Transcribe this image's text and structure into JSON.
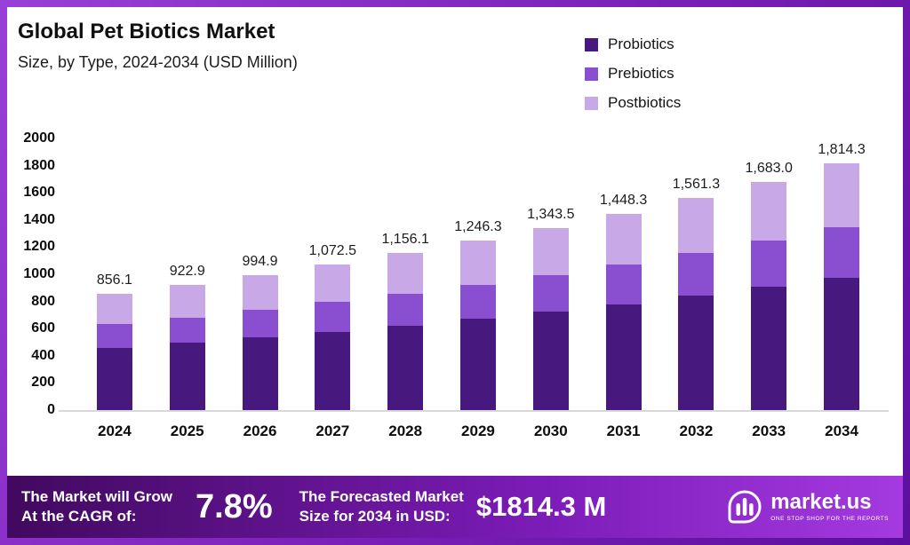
{
  "header": {
    "title": "Global Pet Biotics Market",
    "subtitle": "Size, by Type, 2024-2034 (USD Million)"
  },
  "legend": [
    {
      "label": "Probiotics",
      "color": "#47187e"
    },
    {
      "label": "Prebiotics",
      "color": "#8a4fd0"
    },
    {
      "label": "Postbiotics",
      "color": "#c9a8e8"
    }
  ],
  "chart_data": {
    "type": "bar",
    "stacked": true,
    "title": "Global Pet Biotics Market Size, by Type, 2024-2034 (USD Million)",
    "xlabel": "",
    "ylabel": "USD Million",
    "ylim": [
      0,
      2000
    ],
    "y_ticks": [
      0,
      200,
      400,
      600,
      800,
      1000,
      1200,
      1400,
      1600,
      1800,
      2000
    ],
    "grid": false,
    "legend_position": "top-right",
    "categories": [
      "2024",
      "2025",
      "2026",
      "2027",
      "2028",
      "2029",
      "2030",
      "2031",
      "2032",
      "2033",
      "2034"
    ],
    "series": [
      {
        "name": "Probiotics",
        "color": "#47187e",
        "values": [
          460.0,
          497.0,
          536.0,
          578.0,
          623.0,
          671.0,
          723.0,
          780.0,
          841.0,
          906.0,
          977.0
        ]
      },
      {
        "name": "Prebiotics",
        "color": "#8a4fd0",
        "values": [
          172.0,
          186.0,
          201.0,
          217.0,
          234.0,
          252.0,
          272.0,
          293.0,
          316.0,
          341.0,
          367.0
        ]
      },
      {
        "name": "Postbiotics",
        "color": "#c9a8e8",
        "values": [
          224.1,
          239.9,
          257.9,
          277.5,
          299.1,
          323.3,
          348.5,
          375.3,
          404.3,
          436.0,
          470.3
        ]
      }
    ],
    "totals": [
      856.1,
      922.9,
      994.9,
      1072.5,
      1156.1,
      1246.3,
      1343.5,
      1448.3,
      1561.3,
      1683.0,
      1814.3
    ],
    "total_labels": [
      "856.1",
      "922.9",
      "994.9",
      "1,072.5",
      "1,156.1",
      "1,246.3",
      "1,343.5",
      "1,448.3",
      "1,561.3",
      "1,683.0",
      "1,814.3"
    ]
  },
  "footer": {
    "cagr_label_line1": "The Market will Grow",
    "cagr_label_line2": "At the CAGR of:",
    "cagr_value": "7.8%",
    "forecast_label_line1": "The Forecasted Market",
    "forecast_label_line2": "Size for 2034 in USD:",
    "forecast_value": "$1814.3 M",
    "brand": "market.us",
    "brand_tagline": "ONE STOP SHOP FOR THE REPORTS"
  },
  "colors": {
    "probiotics": "#47187e",
    "prebiotics": "#8a4fd0",
    "postbiotics": "#c9a8e8",
    "frame_purple": "#7a1fb8",
    "banner_dark": "#41095f",
    "banner_bright": "#a43ae0"
  }
}
